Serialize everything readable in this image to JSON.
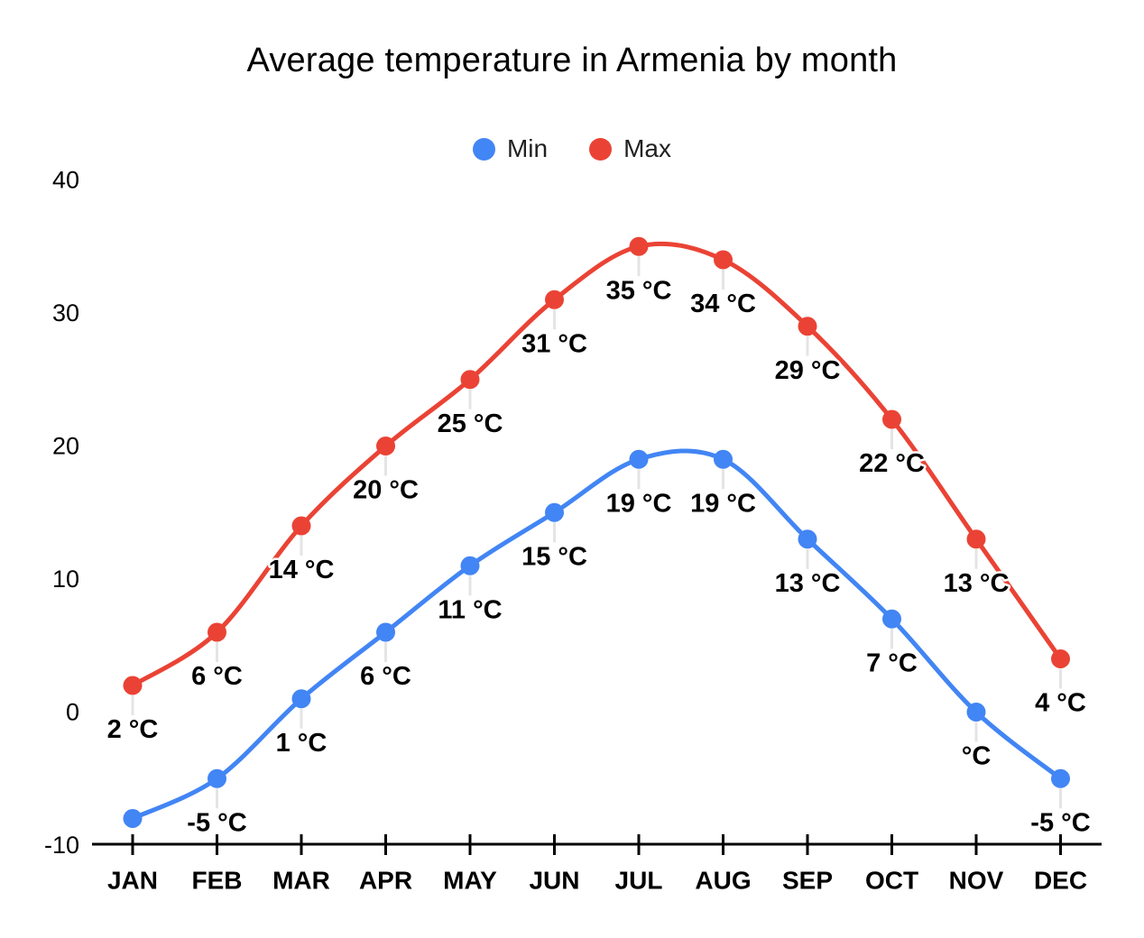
{
  "title": "Average temperature in Armenia by month",
  "legend": {
    "items": [
      {
        "label": "Min",
        "color": "#4285F4"
      },
      {
        "label": "Max",
        "color": "#EA4335"
      }
    ]
  },
  "chart_data": {
    "type": "line",
    "curve": "smooth",
    "title": "Average temperature in Armenia by month",
    "xlabel": "",
    "ylabel": "",
    "categories": [
      "JAN",
      "FEB",
      "MAR",
      "APR",
      "MAY",
      "JUN",
      "JUL",
      "AUG",
      "SEP",
      "OCT",
      "NOV",
      "DEC"
    ],
    "series": [
      {
        "name": "Min",
        "color": "#4285F4",
        "values": [
          -8,
          -5,
          1,
          6,
          11,
          15,
          19,
          19,
          13,
          7,
          0,
          -5
        ],
        "point_labels": [
          "",
          "-5 °C",
          "1 °C",
          "6 °C",
          "11 °C",
          "15 °C",
          "19 °C",
          "19 °C",
          "13 °C",
          "7 °C",
          "°C",
          "-5 °C"
        ]
      },
      {
        "name": "Max",
        "color": "#EA4335",
        "values": [
          2,
          6,
          14,
          20,
          25,
          31,
          35,
          34,
          29,
          22,
          13,
          4
        ],
        "point_labels": [
          "2 °C",
          "6 °C",
          "14 °C",
          "20 °C",
          "25 °C",
          "31 °C",
          "35 °C",
          "34 °C",
          "29 °C",
          "22 °C",
          "13 °C",
          "4 °C"
        ]
      }
    ],
    "yticks": [
      40,
      30,
      20,
      10,
      0,
      -10
    ],
    "ylim": [
      -10,
      40
    ],
    "grid": false,
    "legend_position": "top",
    "background_color": "#ffffff",
    "axis_color": "#000000",
    "annotation_color": "#000000",
    "leader_line_color": "#e4e4e4"
  }
}
